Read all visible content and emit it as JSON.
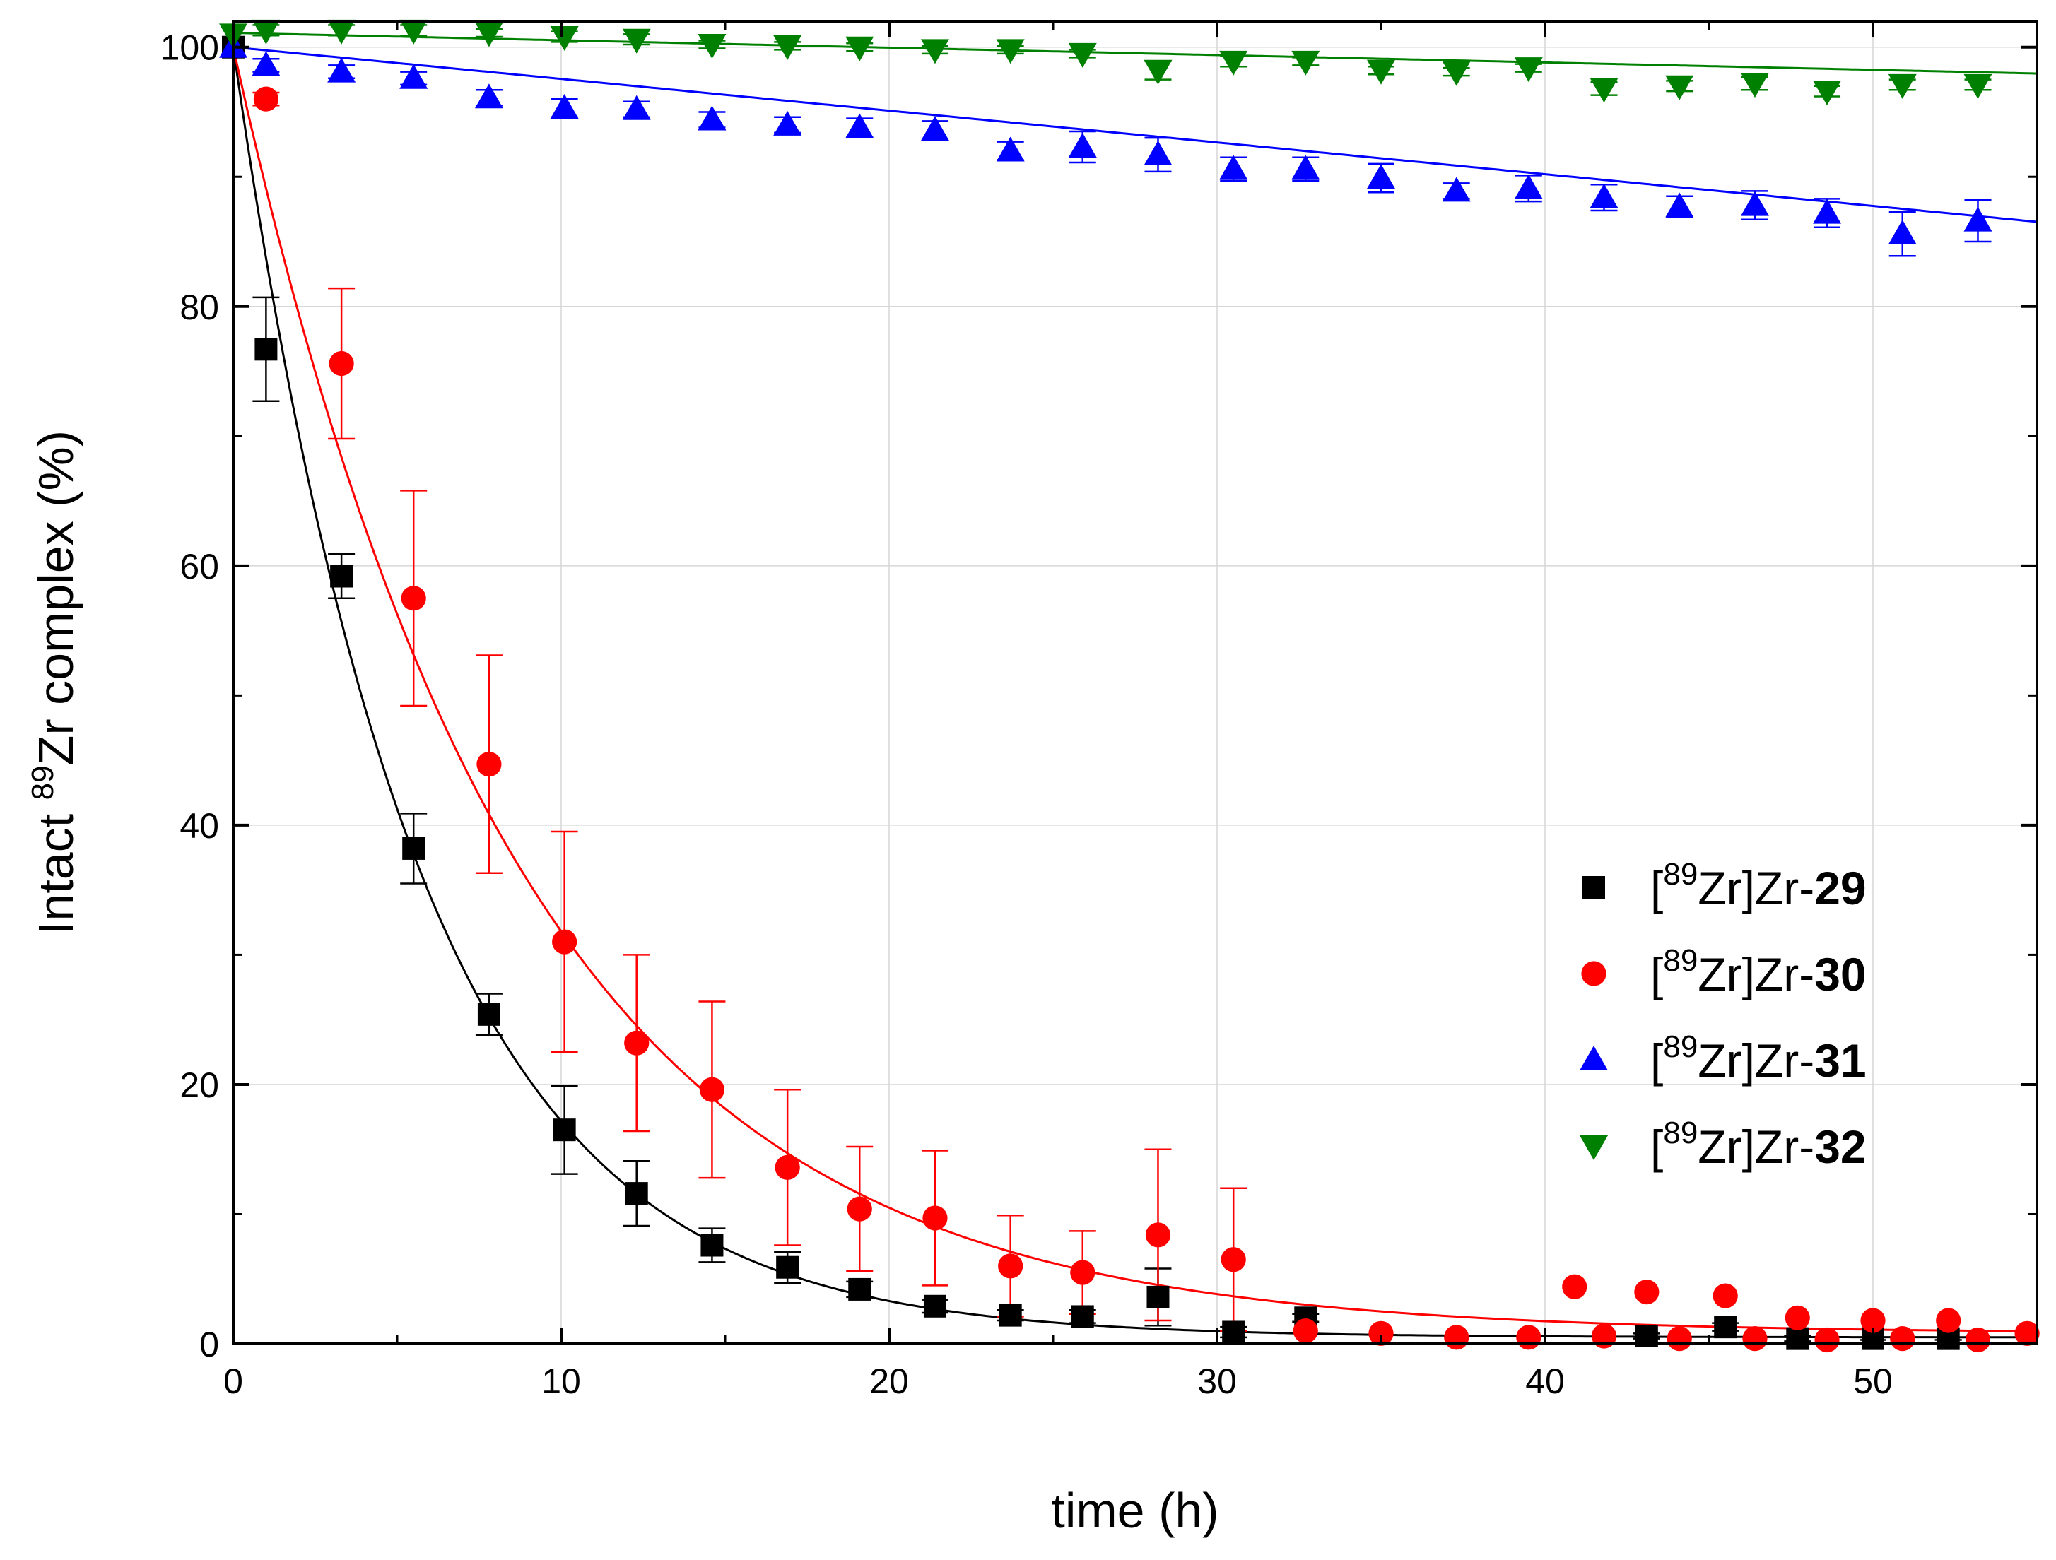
{
  "chart_data": {
    "type": "scatter",
    "xlabel": "time (h)",
    "ylabel_prefix": "Intact ",
    "ylabel_superscript": "89",
    "ylabel_suffix": "Zr complex (%)",
    "xlim": [
      0,
      55
    ],
    "ylim": [
      0,
      102
    ],
    "x_ticks": [
      0,
      10,
      20,
      30,
      40,
      50
    ],
    "y_ticks": [
      0,
      20,
      40,
      60,
      80,
      100
    ],
    "x_tick_labels": [
      "0",
      "10",
      "20",
      "30",
      "40",
      "50"
    ],
    "y_tick_labels": [
      "0",
      "20",
      "40",
      "60",
      "80",
      "100"
    ],
    "grid": true,
    "legend_position": "center-right",
    "series": [
      {
        "name": "[89Zr]Zr-29",
        "legend_open": "[",
        "legend_sup": "89",
        "legend_mid": "Zr]Zr-",
        "legend_num": "29",
        "marker": "square",
        "color": "#000000",
        "fit": {
          "model": "exp-decay",
          "y0": 0.5,
          "A": 99.5,
          "tau": 5.6
        },
        "points": [
          {
            "x": 0,
            "y": 100,
            "err": 0
          },
          {
            "x": 1,
            "y": 76.7,
            "err": 4
          },
          {
            "x": 3.3,
            "y": 59.2,
            "err": 1.7
          },
          {
            "x": 5.5,
            "y": 38.2,
            "err": 2.7
          },
          {
            "x": 7.8,
            "y": 25.4,
            "err": 1.6
          },
          {
            "x": 10.1,
            "y": 16.5,
            "err": 3.4
          },
          {
            "x": 12.3,
            "y": 11.6,
            "err": 2.5
          },
          {
            "x": 14.6,
            "y": 7.6,
            "err": 1.3
          },
          {
            "x": 16.9,
            "y": 5.9,
            "err": 1.2
          },
          {
            "x": 19.1,
            "y": 4.2,
            "err": 0.6
          },
          {
            "x": 21.4,
            "y": 2.9,
            "err": 0.5
          },
          {
            "x": 23.7,
            "y": 2.2,
            "err": 0.4
          },
          {
            "x": 25.9,
            "y": 2.1,
            "err": 0.5
          },
          {
            "x": 28.2,
            "y": 3.6,
            "err": 2.2
          },
          {
            "x": 30.5,
            "y": 0.9,
            "err": 0.4
          },
          {
            "x": 32.7,
            "y": 2,
            "err": 0.3
          },
          {
            "x": 43.1,
            "y": 0.6,
            "err": 0.2
          },
          {
            "x": 45.5,
            "y": 1.3,
            "err": 0.3
          },
          {
            "x": 47.7,
            "y": 0.4,
            "err": 0.2
          },
          {
            "x": 50,
            "y": 0.4,
            "err": 0.1
          },
          {
            "x": 52.3,
            "y": 0.4,
            "err": 0.1
          }
        ]
      },
      {
        "name": "[89Zr]Zr-30",
        "legend_open": "[",
        "legend_sup": "89",
        "legend_mid": "Zr]Zr-",
        "legend_num": "30",
        "marker": "circle",
        "color": "#ff0000",
        "fit": {
          "model": "exp-decay",
          "y0": 0.8,
          "A": 99.2,
          "tau": 8.6
        },
        "points": [
          {
            "x": 1,
            "y": 96,
            "err": 0.5
          },
          {
            "x": 3.3,
            "y": 75.6,
            "err": 5.8
          },
          {
            "x": 5.5,
            "y": 57.5,
            "err": 8.3
          },
          {
            "x": 7.8,
            "y": 44.7,
            "err": 8.4
          },
          {
            "x": 10.1,
            "y": 31,
            "err": 8.5
          },
          {
            "x": 12.3,
            "y": 23.2,
            "err": 6.8
          },
          {
            "x": 14.6,
            "y": 19.6,
            "err": 6.8
          },
          {
            "x": 16.9,
            "y": 13.6,
            "err": 6
          },
          {
            "x": 19.1,
            "y": 10.4,
            "err": 4.8
          },
          {
            "x": 21.4,
            "y": 9.7,
            "err": 5.2
          },
          {
            "x": 23.7,
            "y": 6,
            "err": 3.9
          },
          {
            "x": 25.9,
            "y": 5.5,
            "err": 3.2
          },
          {
            "x": 28.2,
            "y": 8.4,
            "err": 6.6
          },
          {
            "x": 30.5,
            "y": 6.5,
            "err": 5.5
          },
          {
            "x": 32.7,
            "y": 1,
            "err": 0
          },
          {
            "x": 35,
            "y": 0.8,
            "err": 0
          },
          {
            "x": 37.3,
            "y": 0.5,
            "err": 0
          },
          {
            "x": 39.5,
            "y": 0.5,
            "err": 0
          },
          {
            "x": 40.9,
            "y": 4.4,
            "err": 0
          },
          {
            "x": 41.8,
            "y": 0.6,
            "err": 0
          },
          {
            "x": 43.1,
            "y": 4,
            "err": 0
          },
          {
            "x": 44.1,
            "y": 0.4,
            "err": 0
          },
          {
            "x": 45.5,
            "y": 3.7,
            "err": 0
          },
          {
            "x": 46.4,
            "y": 0.4,
            "err": 0
          },
          {
            "x": 47.7,
            "y": 2,
            "err": 0
          },
          {
            "x": 48.6,
            "y": 0.3,
            "err": 0
          },
          {
            "x": 50,
            "y": 1.8,
            "err": 0
          },
          {
            "x": 50.9,
            "y": 0.4,
            "err": 0
          },
          {
            "x": 52.3,
            "y": 1.8,
            "err": 0
          },
          {
            "x": 53.2,
            "y": 0.3,
            "err": 0
          },
          {
            "x": 54.7,
            "y": 0.8,
            "err": 0
          }
        ]
      },
      {
        "name": "[89Zr]Zr-31",
        "legend_open": "[",
        "legend_sup": "89",
        "legend_mid": "Zr]Zr-",
        "legend_num": "31",
        "marker": "triangle-up",
        "color": "#0000ff",
        "fit": {
          "model": "linear",
          "y_start": 100,
          "slope": -0.245
        },
        "points": [
          {
            "x": 0,
            "y": 100,
            "err": 0
          },
          {
            "x": 1,
            "y": 98.6,
            "err": 0.5
          },
          {
            "x": 3.3,
            "y": 98.1,
            "err": 0.5
          },
          {
            "x": 5.5,
            "y": 97.6,
            "err": 0.5
          },
          {
            "x": 7.8,
            "y": 96.1,
            "err": 0.6
          },
          {
            "x": 10.1,
            "y": 95.3,
            "err": 0.7
          },
          {
            "x": 12.3,
            "y": 95.2,
            "err": 0.6
          },
          {
            "x": 14.6,
            "y": 94.4,
            "err": 0.6
          },
          {
            "x": 16.9,
            "y": 94,
            "err": 0.6
          },
          {
            "x": 19.1,
            "y": 93.8,
            "err": 0.7
          },
          {
            "x": 21.4,
            "y": 93.6,
            "err": 0.7
          },
          {
            "x": 23.7,
            "y": 92,
            "err": 0.7
          },
          {
            "x": 25.9,
            "y": 92.3,
            "err": 1.2
          },
          {
            "x": 28.2,
            "y": 91.7,
            "err": 1.3
          },
          {
            "x": 30.5,
            "y": 90.6,
            "err": 0.9
          },
          {
            "x": 32.7,
            "y": 90.6,
            "err": 0.9
          },
          {
            "x": 35,
            "y": 89.9,
            "err": 1.1
          },
          {
            "x": 37.3,
            "y": 88.9,
            "err": 0.6
          },
          {
            "x": 39.5,
            "y": 89.1,
            "err": 1
          },
          {
            "x": 41.8,
            "y": 88.4,
            "err": 1
          },
          {
            "x": 44.1,
            "y": 87.7,
            "err": 0.8
          },
          {
            "x": 46.4,
            "y": 87.8,
            "err": 1.1
          },
          {
            "x": 48.6,
            "y": 87.2,
            "err": 1.1
          },
          {
            "x": 50.9,
            "y": 85.6,
            "err": 1.7
          },
          {
            "x": 53.2,
            "y": 86.6,
            "err": 1.6
          }
        ]
      },
      {
        "name": "[89Zr]Zr-32",
        "legend_open": "[",
        "legend_sup": "89",
        "legend_mid": "Zr]Zr-",
        "legend_num": "32",
        "marker": "triangle-down",
        "color": "#008000",
        "fit": {
          "model": "linear",
          "y_start": 101.1,
          "slope": -0.057
        },
        "points": [
          {
            "x": 0,
            "y": 101,
            "err": 0
          },
          {
            "x": 1,
            "y": 101.3,
            "err": 0.4
          },
          {
            "x": 3.3,
            "y": 101.3,
            "err": 0.4
          },
          {
            "x": 5.5,
            "y": 101.3,
            "err": 0.4
          },
          {
            "x": 7.8,
            "y": 101.1,
            "err": 0.3
          },
          {
            "x": 10.1,
            "y": 100.8,
            "err": 0.4
          },
          {
            "x": 12.3,
            "y": 100.6,
            "err": 0.4
          },
          {
            "x": 14.6,
            "y": 100.2,
            "err": 0.3
          },
          {
            "x": 16.9,
            "y": 100.1,
            "err": 0.3
          },
          {
            "x": 19.1,
            "y": 100,
            "err": 0.3
          },
          {
            "x": 21.4,
            "y": 99.8,
            "err": 0.3
          },
          {
            "x": 23.7,
            "y": 99.8,
            "err": 0.3
          },
          {
            "x": 25.9,
            "y": 99.5,
            "err": 0.3
          },
          {
            "x": 28.2,
            "y": 98.2,
            "err": 0.7
          },
          {
            "x": 30.5,
            "y": 98.9,
            "err": 0.4
          },
          {
            "x": 32.7,
            "y": 98.9,
            "err": 0.3
          },
          {
            "x": 35,
            "y": 98.2,
            "err": 0.3
          },
          {
            "x": 37.3,
            "y": 98.1,
            "err": 0.3
          },
          {
            "x": 39.5,
            "y": 98.4,
            "err": 0.3
          },
          {
            "x": 41.8,
            "y": 96.8,
            "err": 0.5
          },
          {
            "x": 44.1,
            "y": 97,
            "err": 0.4
          },
          {
            "x": 46.4,
            "y": 97.2,
            "err": 0.5
          },
          {
            "x": 48.6,
            "y": 96.6,
            "err": 0.4
          },
          {
            "x": 50.9,
            "y": 97.1,
            "err": 0.4
          },
          {
            "x": 53.2,
            "y": 97.1,
            "err": 0.4
          }
        ]
      }
    ]
  }
}
